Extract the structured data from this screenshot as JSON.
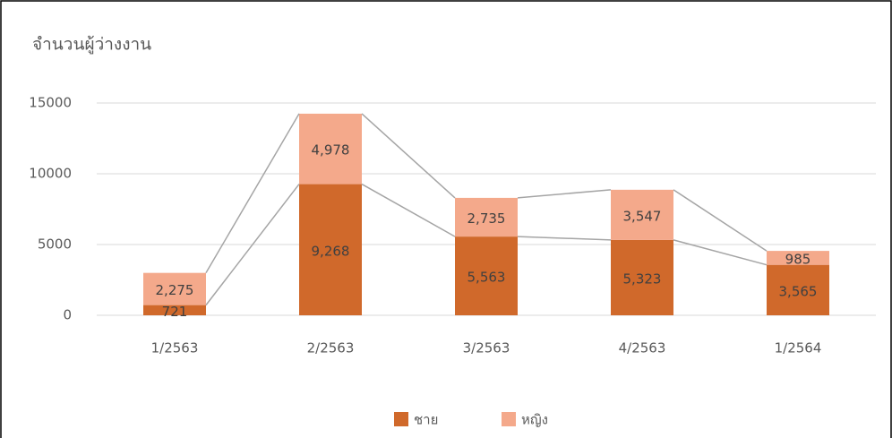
{
  "chart_data": {
    "type": "bar",
    "stacked": true,
    "title": "จำนวนผู้ว่างงาน",
    "categories": [
      "1/2563",
      "2/2563",
      "3/2563",
      "4/2563",
      "1/2564"
    ],
    "series": [
      {
        "name": "ชาย",
        "color": "#d0692b",
        "values": [
          721,
          9268,
          5563,
          5323,
          3565
        ],
        "value_labels": [
          "721",
          "9,268",
          "5,563",
          "5,323",
          "3,565"
        ]
      },
      {
        "name": "หญิง",
        "color": "#f4a98b",
        "values": [
          2275,
          4978,
          2735,
          3547,
          985
        ],
        "value_labels": [
          "2,275",
          "4,978",
          "2,735",
          "3,547",
          "985"
        ]
      }
    ],
    "ylim": [
      0,
      15000
    ],
    "yticks": [
      0,
      5000,
      10000,
      15000
    ],
    "grid": true,
    "legend": "bottom"
  }
}
